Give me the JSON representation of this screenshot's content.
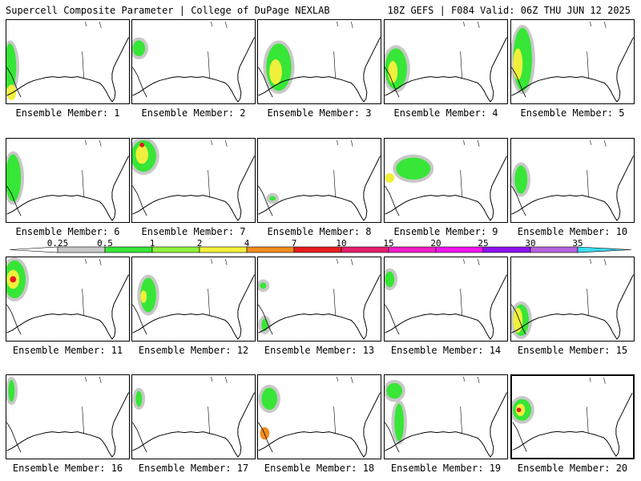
{
  "header": {
    "left": "Supercell Composite Parameter | College of DuPage NEXLAB",
    "right": "18Z GEFS | F084 Valid: 06Z THU JUN 12 2025"
  },
  "caption_prefix": "Ensemble Member: ",
  "colorbar": {
    "ticks": [
      "0.25",
      "0.5",
      "1",
      "2",
      "4",
      "7",
      "10",
      "15",
      "20",
      "25",
      "30",
      "35"
    ],
    "colors": [
      "#c8c8c8",
      "#37e637",
      "#8ef03c",
      "#f0f03c",
      "#f08c1e",
      "#e61e1e",
      "#e61e6e",
      "#f01ec8",
      "#f014f0",
      "#8c14f0",
      "#b464dc",
      "#3cdcf0"
    ]
  },
  "members": [
    {
      "id": "1"
    },
    {
      "id": "2"
    },
    {
      "id": "3"
    },
    {
      "id": "4"
    },
    {
      "id": "5"
    },
    {
      "id": "6"
    },
    {
      "id": "7"
    },
    {
      "id": "8"
    },
    {
      "id": "9"
    },
    {
      "id": "10"
    },
    {
      "id": "11"
    },
    {
      "id": "12"
    },
    {
      "id": "13"
    },
    {
      "id": "14"
    },
    {
      "id": "15"
    },
    {
      "id": "16"
    },
    {
      "id": "17"
    },
    {
      "id": "18"
    },
    {
      "id": "19"
    },
    {
      "id": "20"
    }
  ]
}
